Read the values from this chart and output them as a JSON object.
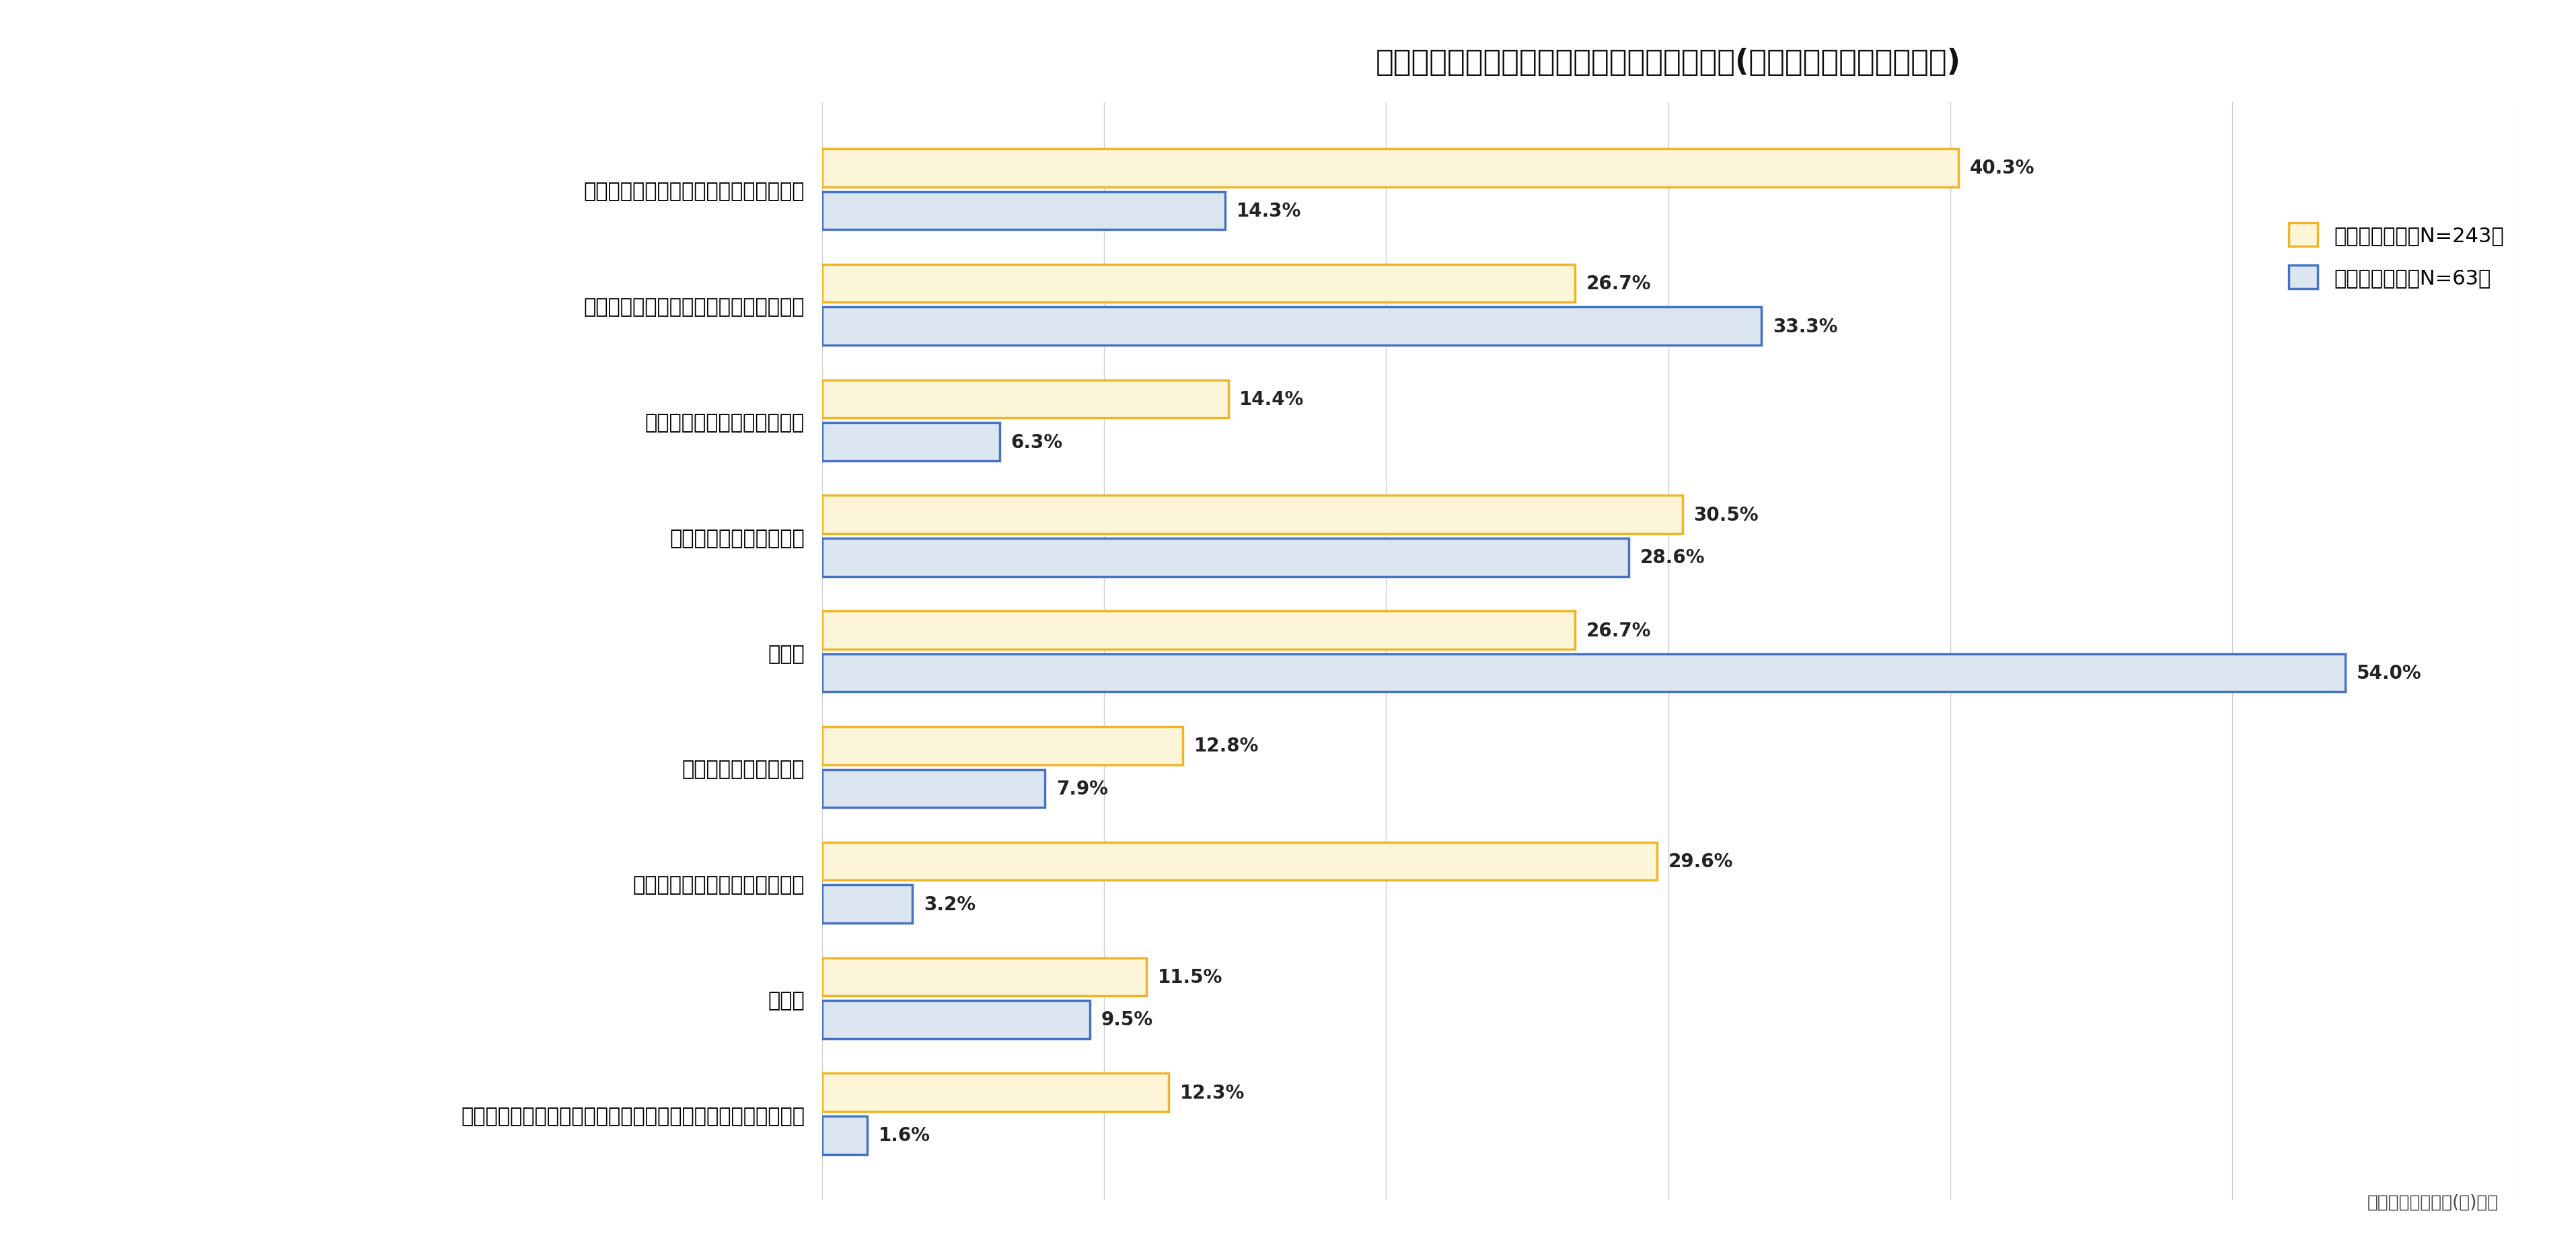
{
  "title": "腰の痛みや悩みを感じるタイミング・シーン(デスクワーク・現場仕事)",
  "categories": [
    "長時間の座りっぱなしの間、もしくは後",
    "長時間の立ちっぱなしの間、もしくは後",
    "ストレスがたまっているとき",
    "疲れがたまっているとき",
    "仕事中",
    "運動中、または運動後",
    "デスクワークの間、もしくは後",
    "運転中",
    "スマートフォン・タブレット・パソコンの使用時、もしくは後"
  ],
  "desk_values": [
    40.3,
    26.7,
    14.4,
    30.5,
    26.7,
    12.8,
    29.6,
    11.5,
    12.3
  ],
  "field_values": [
    14.3,
    33.3,
    6.3,
    28.6,
    54.0,
    7.9,
    3.2,
    9.5,
    1.6
  ],
  "desk_color_fill": "#fdf5d8",
  "desk_color_edge": "#f0b429",
  "field_color_fill": "#dce6f1",
  "field_color_edge": "#4472c4",
  "legend_desk_label1": "デスクワーク",
  "legend_desk_label2": "（N=243）",
  "legend_field_label1": "現場仕事",
  "legend_field_label2": "　　（N=63）",
  "source_text": "日本シグマックス(株)調べ",
  "xlim": [
    0,
    60
  ],
  "background_color": "#ffffff",
  "title_fontsize": 32,
  "label_fontsize": 22,
  "value_fontsize": 20,
  "legend_fontsize": 22,
  "source_fontsize": 19
}
